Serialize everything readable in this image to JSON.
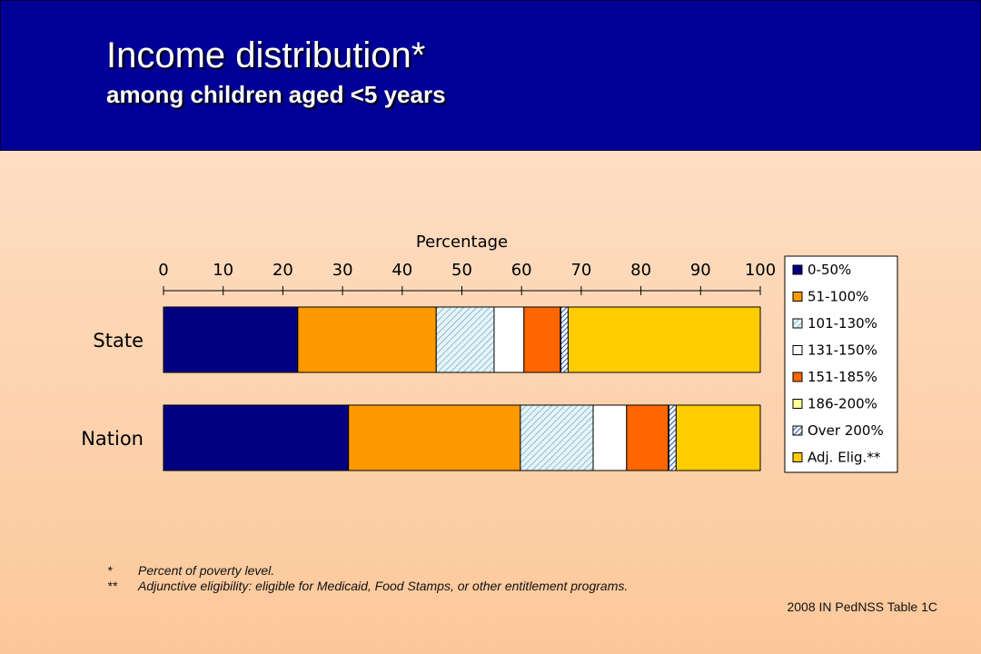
{
  "header": {
    "title": "Income distribution*",
    "subtitle": "among children aged <5 years"
  },
  "chart_data": {
    "type": "bar",
    "orientation": "horizontal",
    "stacked": true,
    "xlabel": "Percentage",
    "xlim": [
      0,
      100
    ],
    "xticks": [
      "0",
      "10",
      "20",
      "30",
      "40",
      "50",
      "60",
      "70",
      "80",
      "90",
      "100"
    ],
    "categories": [
      "State",
      "Nation"
    ],
    "series": [
      {
        "name": "0-50%",
        "values": [
          22.5,
          31
        ],
        "color": "#000080",
        "pattern": "solid"
      },
      {
        "name": "51-100%",
        "values": [
          23.2,
          28.8
        ],
        "color": "#FF9900",
        "pattern": "solid"
      },
      {
        "name": "101-130%",
        "values": [
          9.7,
          12.2
        ],
        "color": "#CCE8F0",
        "pattern": "diagonal-light"
      },
      {
        "name": "131-150%",
        "values": [
          5,
          5.6
        ],
        "color": "#FFFFFF",
        "pattern": "solid"
      },
      {
        "name": "151-185%",
        "values": [
          6.1,
          7
        ],
        "color": "#FF6600",
        "pattern": "solid"
      },
      {
        "name": "186-200%",
        "values": [
          0.1,
          0.1
        ],
        "color": "#FFFF99",
        "pattern": "solid"
      },
      {
        "name": "Over 200%",
        "values": [
          1.2,
          1.2
        ],
        "color": "#3366CC",
        "pattern": "diagonal-dark"
      },
      {
        "name": "Adj. Elig.**",
        "values": [
          32.2,
          14.1
        ],
        "color": "#FFCC00",
        "pattern": "solid"
      }
    ],
    "legend_position": "right"
  },
  "footnotes": [
    {
      "mark": "*",
      "text": "Percent of poverty level."
    },
    {
      "mark": "**",
      "text": "Adjunctive eligibility: eligible for Medicaid, Food Stamps, or other entitlement programs."
    }
  ],
  "source": "2008 IN PedNSS Table 1C"
}
